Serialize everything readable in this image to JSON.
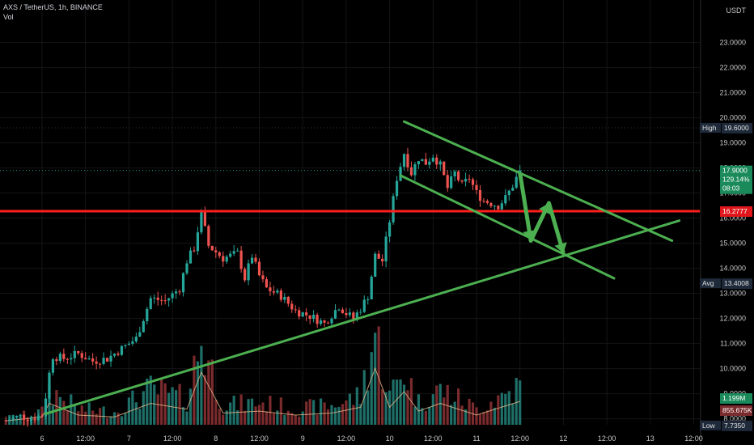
{
  "header": {
    "symbol_line": "AXS / TetherUS, 1h, BINANCE",
    "volume_label": "Vol"
  },
  "currency": "USDT",
  "colors": {
    "up": "#26a69a",
    "down": "#ef5350",
    "volume_up": "#1f6f69",
    "volume_down": "#7a2b2d",
    "support_line": "#4caf50",
    "resistance_line": "#ff1e1e",
    "axis_text": "#c7c7c7"
  },
  "price_tags": {
    "high": {
      "label": "High",
      "value": "19.6000",
      "price": 19.6
    },
    "last": {
      "value": "17.9000",
      "change": "129.14%",
      "countdown": "08:03",
      "price": 17.9
    },
    "horizontal": {
      "value": "16.2777",
      "price": 16.2777
    },
    "avg": {
      "label": "Avg",
      "value": "13.4008",
      "price": 13.4008
    },
    "low": {
      "label": "Low",
      "value": "7.7350",
      "price": 7.735
    },
    "volume_last": {
      "value": "1.199M"
    },
    "volume_avg": {
      "value": "855.675K"
    }
  },
  "chart_data": {
    "type": "candlestick",
    "title": "",
    "symbol": "AXS / TetherUS",
    "interval": "1h",
    "exchange": "BINANCE",
    "y_axis_unit": "USDT",
    "ylim": [
      7.6,
      23.2
    ],
    "y_ticks": [
      "8.0000",
      "9.0000",
      "10.0000",
      "11.0000",
      "12.0000",
      "13.0000",
      "14.0000",
      "15.0000",
      "16.0000",
      "17.0000",
      "18.0000",
      "19.0000",
      "20.0000",
      "21.0000",
      "22.0000",
      "23.0000"
    ],
    "x_ticks": [
      {
        "label": "6",
        "hours": 0
      },
      {
        "label": "12:00",
        "hours": 12
      },
      {
        "label": "7",
        "hours": 24
      },
      {
        "label": "12:00",
        "hours": 36
      },
      {
        "label": "8",
        "hours": 48
      },
      {
        "label": "12:00",
        "hours": 60
      },
      {
        "label": "9",
        "hours": 72
      },
      {
        "label": "12:00",
        "hours": 84
      },
      {
        "label": "10",
        "hours": 96
      },
      {
        "label": "12:00",
        "hours": 108
      },
      {
        "label": "11",
        "hours": 120
      },
      {
        "label": "12:00",
        "hours": 132
      },
      {
        "label": "12",
        "hours": 144
      },
      {
        "label": "12:00",
        "hours": 156
      },
      {
        "label": "13",
        "hours": 168
      },
      {
        "label": "12:00",
        "hours": 180
      }
    ],
    "x_range_hours": [
      -11,
      189
    ],
    "price_path": [
      [
        -10,
        7.95
      ],
      [
        -6,
        8.1
      ],
      [
        -3,
        8.02
      ],
      [
        0,
        8.15
      ],
      [
        1,
        8.9
      ],
      [
        2,
        9.8
      ],
      [
        3,
        10.5
      ],
      [
        6,
        10.4
      ],
      [
        10,
        10.6
      ],
      [
        14,
        10.3
      ],
      [
        18,
        10.4
      ],
      [
        22,
        10.8
      ],
      [
        26,
        11.2
      ],
      [
        30,
        12.8
      ],
      [
        34,
        12.7
      ],
      [
        38,
        13.2
      ],
      [
        40,
        14.3
      ],
      [
        42,
        14.8
      ],
      [
        44,
        16.2
      ],
      [
        46,
        14.9
      ],
      [
        50,
        14.4
      ],
      [
        54,
        14.6
      ],
      [
        56,
        13.6
      ],
      [
        58,
        14.5
      ],
      [
        60,
        13.7
      ],
      [
        62,
        13.2
      ],
      [
        66,
        12.9
      ],
      [
        70,
        12.3
      ],
      [
        74,
        12.1
      ],
      [
        78,
        11.8
      ],
      [
        82,
        12.5
      ],
      [
        84,
        12.2
      ],
      [
        86,
        12.0
      ],
      [
        88,
        12.4
      ],
      [
        90,
        12.9
      ],
      [
        92,
        14.5
      ],
      [
        94,
        14.3
      ],
      [
        96,
        15.9
      ],
      [
        98,
        17.6
      ],
      [
        100,
        18.6
      ],
      [
        102,
        17.8
      ],
      [
        104,
        18.4
      ],
      [
        106,
        18.2
      ],
      [
        108,
        18.5
      ],
      [
        110,
        18.1
      ],
      [
        112,
        17.2
      ],
      [
        114,
        17.8
      ],
      [
        116,
        17.3
      ],
      [
        118,
        17.6
      ],
      [
        120,
        17.0
      ],
      [
        122,
        16.7
      ],
      [
        124,
        16.6
      ],
      [
        126,
        16.5
      ],
      [
        128,
        16.8
      ],
      [
        130,
        17.3
      ],
      [
        132,
        17.9
      ]
    ],
    "volume_path": [
      [
        -10,
        0.2
      ],
      [
        0,
        0.4
      ],
      [
        2,
        1.1
      ],
      [
        10,
        0.5
      ],
      [
        20,
        0.4
      ],
      [
        30,
        1.1
      ],
      [
        40,
        0.8
      ],
      [
        44,
        2.7
      ],
      [
        50,
        0.6
      ],
      [
        60,
        0.7
      ],
      [
        70,
        0.5
      ],
      [
        80,
        0.6
      ],
      [
        88,
        0.9
      ],
      [
        92,
        2.9
      ],
      [
        96,
        0.9
      ],
      [
        100,
        1.7
      ],
      [
        104,
        0.7
      ],
      [
        110,
        1.1
      ],
      [
        120,
        0.5
      ],
      [
        132,
        1.2
      ]
    ],
    "drawings": {
      "rising_trendline": {
        "start": [
          1,
          8.2
        ],
        "end": [
          176,
          15.9
        ]
      },
      "channel_upper": {
        "start": [
          100,
          19.85
        ],
        "end": [
          174,
          15.1
        ]
      },
      "channel_lower": {
        "start": [
          99,
          17.7
        ],
        "end": [
          158,
          13.6
        ]
      },
      "horizontal_line": {
        "price": 16.2777
      },
      "arrows": [
        {
          "points": [
            [
              132,
              17.8
            ],
            [
              135,
              15.1
            ],
            [
              140,
              16.6
            ],
            [
              144,
              14.6
            ]
          ]
        }
      ]
    }
  }
}
